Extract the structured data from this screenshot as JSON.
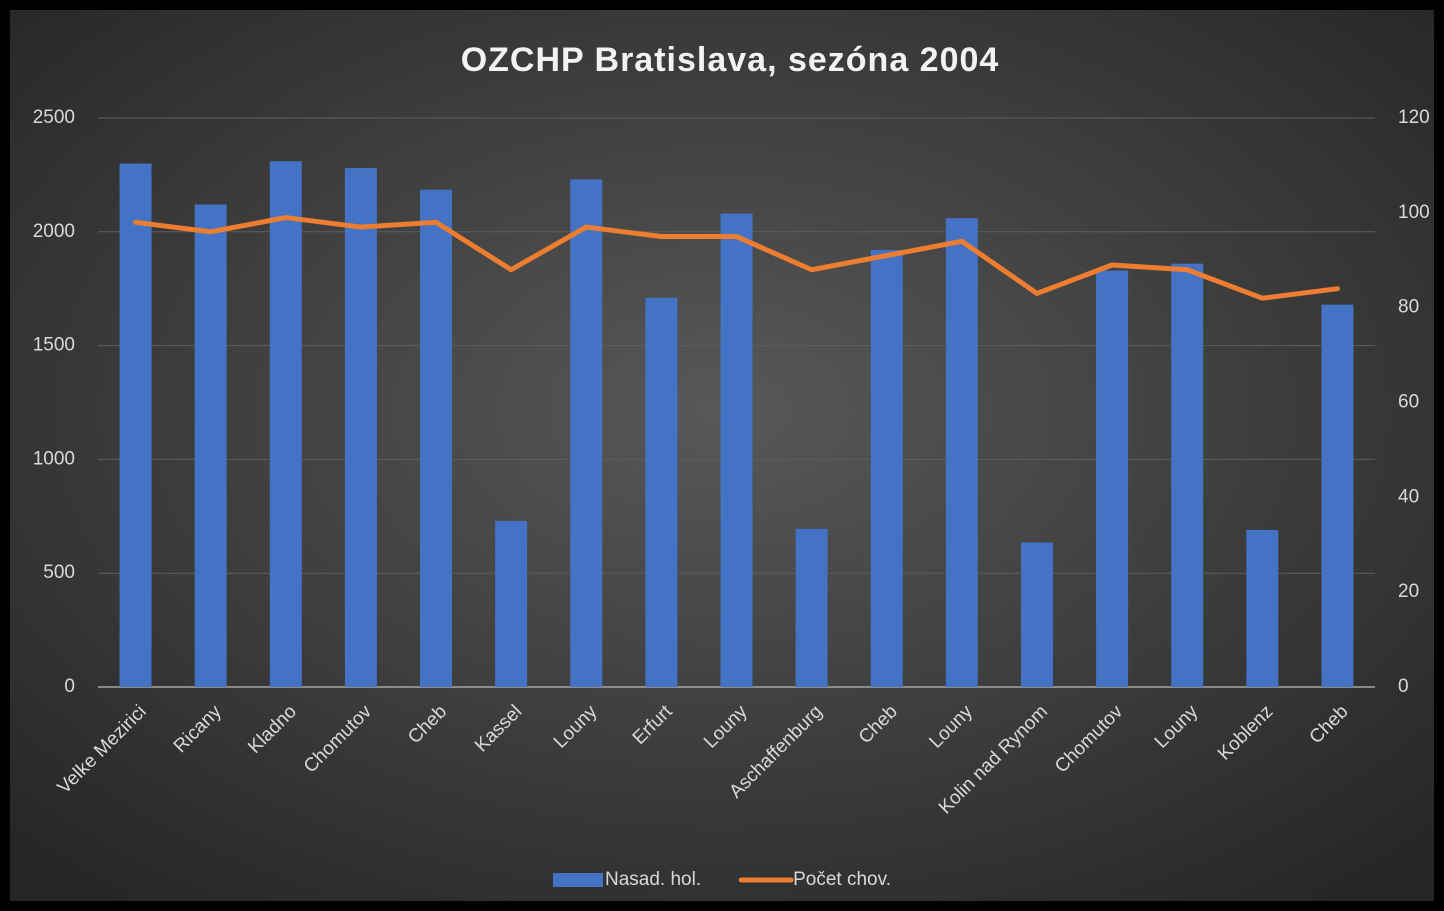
{
  "chart_data": {
    "type": "bar",
    "title": "OZCHP Bratislava, sezóna 2004",
    "categories": [
      "Velke Mezirici",
      "Ricany",
      "Kladno",
      "Chomutov",
      "Cheb",
      "Kassel",
      "Louny",
      "Erfurt",
      "Louny",
      "Aschaffenburg",
      "Cheb",
      "Louny",
      "Kolin nad Rynom",
      "Chomutov",
      "Louny",
      "Koblenz",
      "Cheb"
    ],
    "series": [
      {
        "name": "Nasad. hol.",
        "type": "bar",
        "color": "#4472c4",
        "values": [
          2300,
          2120,
          2310,
          2280,
          2185,
          730,
          2230,
          1710,
          2080,
          695,
          1920,
          2060,
          635,
          1830,
          1860,
          690,
          1680
        ]
      },
      {
        "name": "Počet chov.",
        "type": "line",
        "axis": "y2",
        "color": "#ed7d31",
        "values": [
          98,
          96,
          99,
          97,
          98,
          88,
          97,
          95,
          95,
          88,
          91,
          94,
          83,
          89,
          88,
          82,
          84
        ]
      }
    ],
    "ylim": [
      0,
      2500
    ],
    "yticks": [
      0,
      500,
      1000,
      1500,
      2000,
      2500
    ],
    "y2lim": [
      0,
      120
    ],
    "y2ticks": [
      0,
      20,
      40,
      60,
      80,
      100,
      120
    ],
    "grid": true,
    "legend": "bottom"
  }
}
